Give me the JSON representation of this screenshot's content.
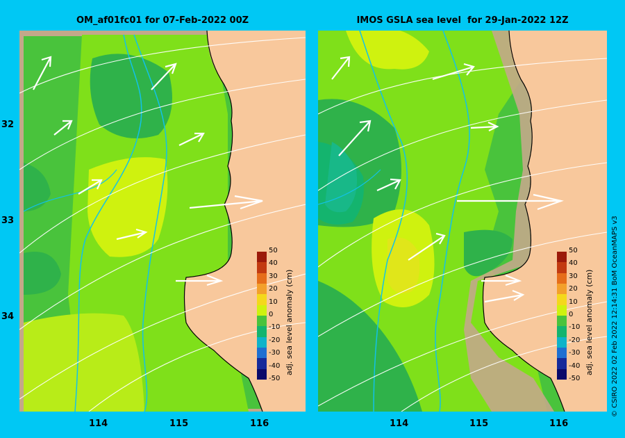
{
  "panels": {
    "left": {
      "title": "OM_af01fc01 for 07-Feb-2022 00Z"
    },
    "right": {
      "title": "IMOS GSLA sea level  for 29-Jan-2022 12Z"
    }
  },
  "axes": {
    "x_ticks": [
      "114",
      "115",
      "116"
    ],
    "y_ticks": [
      "32",
      "33",
      "34"
    ]
  },
  "colorbar": {
    "title": "adj. sea level anomaly (cm)",
    "labels": [
      "50",
      "40",
      "30",
      "20",
      "10",
      "0",
      "-10",
      "-20",
      "-30",
      "-40",
      "-50"
    ],
    "colors": [
      "#9b1a0a",
      "#c23a10",
      "#e66d1a",
      "#f3a02b",
      "#f4d81c",
      "#cff20f",
      "#49c33c",
      "#14b46e",
      "#0fb3c9",
      "#1e6fd1",
      "#152a9a",
      "#0a0a6a"
    ]
  },
  "credit": "© CSIRO 2022   02 Feb 2022 12:14:31 BoM OceanMAPS v3",
  "colors": {
    "background": "#00c8f4",
    "land": "#f8c89c",
    "shelf": "#c3a88a"
  }
}
